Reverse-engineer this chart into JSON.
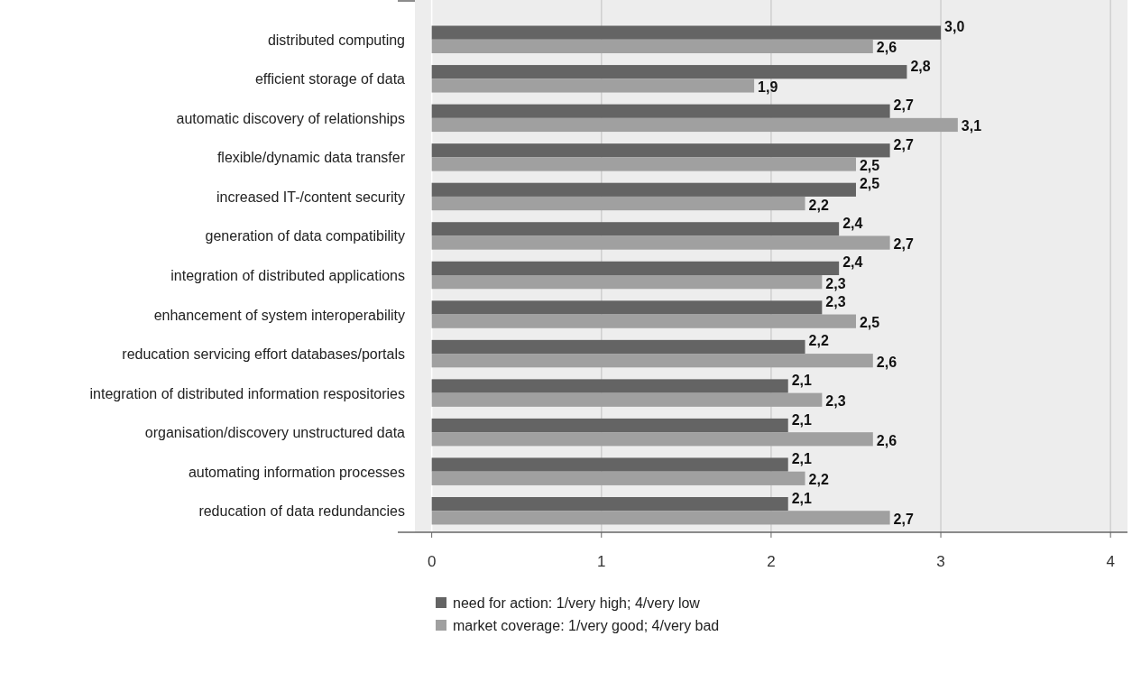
{
  "chart_data": {
    "type": "bar",
    "orientation": "horizontal",
    "categories": [
      "distributed computing",
      "efficient storage of data",
      "automatic discovery of relationships",
      "flexible/dynamic data transfer",
      "increased IT-/content security",
      "generation of data compatibility",
      "integration of distributed applications",
      "enhancement of system interoperability",
      "reducation servicing effort databases/portals",
      "integration of distributed information respositories",
      "organisation/discovery unstructured data",
      "automating information processes",
      "reducation of data redundancies"
    ],
    "series": [
      {
        "name": "need for action: 1/very high; 4/very low",
        "color": "#646464",
        "values": [
          3.0,
          2.8,
          2.7,
          2.7,
          2.5,
          2.4,
          2.4,
          2.3,
          2.2,
          2.1,
          2.1,
          2.1,
          2.1
        ],
        "value_labels": [
          "3,0",
          "2,8",
          "2,7",
          "2,7",
          "2,5",
          "2,4",
          "2,4",
          "2,3",
          "2,2",
          "2,1",
          "2,1",
          "2,1",
          "2,1"
        ]
      },
      {
        "name": "market coverage: 1/very good; 4/very bad",
        "color": "#a0a0a0",
        "values": [
          2.6,
          1.9,
          3.1,
          2.5,
          2.2,
          2.7,
          2.3,
          2.5,
          2.6,
          2.3,
          2.6,
          2.2,
          2.7
        ],
        "value_labels": [
          "2,6",
          "1,9",
          "3,1",
          "2,5",
          "2,2",
          "2,7",
          "2,3",
          "2,5",
          "2,6",
          "2,3",
          "2,6",
          "2,2",
          "2,7"
        ]
      }
    ],
    "xlim": [
      -0.2,
      4.1
    ],
    "xticks": [
      0,
      1,
      2,
      3,
      4
    ],
    "grid": "x",
    "legend": "bottom"
  }
}
